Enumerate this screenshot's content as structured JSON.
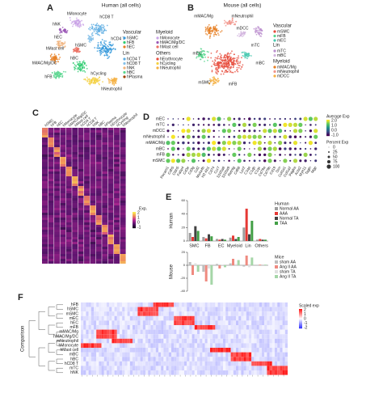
{
  "panels": {
    "A": {
      "letter": "A",
      "title": "Human (all cells)",
      "cluster_labels": [
        "hMonocyte",
        "hNK",
        "hCD8 T",
        "hEC",
        "hMast cell",
        "hMAC/Mg/DC",
        "hFB",
        "hBC",
        "hCycling",
        "hNeutrophil",
        "hSMC",
        "hCD4 T"
      ],
      "legend": [
        {
          "name": "Vascular",
          "items": [
            "hSMC",
            "hFB",
            "hEC"
          ]
        },
        {
          "name": "Myeloid",
          "items": [
            "hMonocyte",
            "hMAC/Mg/DC",
            "hMast cell"
          ]
        },
        {
          "name": "Lin",
          "items": [
            "hCD4 T",
            "hCD8 T",
            "hNK",
            "hBC",
            "hPlasma"
          ]
        },
        {
          "name": "Others",
          "items": [
            "hErythrocyte",
            "hCycling",
            "hNeutrophil"
          ]
        }
      ]
    },
    "B": {
      "letter": "B",
      "title": "Mouse (all cells)",
      "cluster_labels": [
        "mMAC/Mg",
        "mNeutrophil",
        "mTC",
        "mBC",
        "mDCC",
        "mEC",
        "mSMC",
        "mFB"
      ],
      "legend": [
        {
          "name": "Vascular",
          "items": [
            "mSMC",
            "mFB",
            "mEC"
          ]
        },
        {
          "name": "Lin",
          "items": [
            "mTC",
            "mBC"
          ]
        },
        {
          "name": "Myeloid",
          "items": [
            "mMAC/Mg",
            "mNeutrophil",
            "mDCC"
          ]
        }
      ]
    },
    "C": {
      "letter": "C",
      "column_labels": [
        "hSMC",
        "hFB",
        "hEC",
        "hMonocyte",
        "hMAC/Mg/DC",
        "hMast cell",
        "hCD4 T",
        "hCD8 T",
        "hNK",
        "hBC",
        "hPlasma",
        "hErythrocyte",
        "hCycling",
        "hNeutrophil"
      ],
      "legend_title": "Exp.",
      "legend_ticks": [
        "2",
        "1",
        "0",
        "-1"
      ]
    },
    "D": {
      "letter": "D",
      "rows": [
        "mEC",
        "mTC",
        "mDCC",
        "mNeutrophil",
        "mMAC/Mg",
        "mBC",
        "mFB",
        "mSMC"
      ],
      "genes": [
        "Pecam1",
        "Cdh5",
        "Cldn5",
        "Fabp4",
        "Cd3e",
        "Cd3g",
        "Cd2",
        "Ms4a4b",
        "H2-Ab1",
        "Cd74",
        "Ccr7",
        "S100a8",
        "S100a9",
        "Retnlg",
        "Cd68",
        "Lyz2",
        "C1qa",
        "C1qb",
        "C1qc",
        "Cd79a",
        "Cd79b",
        "Cd19",
        "Dcn",
        "Col1a1",
        "Col1a2",
        "Pdgfra",
        "Acta2",
        "Myh11",
        "Tagln",
        "Mgp"
      ],
      "avg_title": "Average Exp",
      "avg_ticks": [
        "2.0",
        "1.0",
        "0.0",
        "-1.0"
      ],
      "pct_title": "Percent Exp",
      "pct_ticks": [
        "0",
        "25",
        "50",
        "75",
        "100"
      ]
    },
    "E": {
      "letter": "E",
      "categories": [
        "SMC",
        "FB",
        "EC",
        "Myeloid",
        "Lin",
        "Others"
      ],
      "human": {
        "label": "Human",
        "legend_title": "Human",
        "ylim": [
          0,
          60
        ],
        "yticks": [
          0,
          20,
          40,
          60
        ],
        "series": [
          {
            "name": "Normal AA",
            "color": "#9e9e9e",
            "values": [
              12,
              6,
              3,
              5,
              20,
              2
            ]
          },
          {
            "name": "AAA",
            "color": "#e53935",
            "values": [
              6,
              4,
              2,
              8,
              48,
              3
            ]
          },
          {
            "name": "Normal TA",
            "color": "#424242",
            "values": [
              22,
              10,
              3,
              3,
              10,
              2
            ]
          },
          {
            "name": "TAA",
            "color": "#43a047",
            "values": [
              15,
              7,
              2,
              6,
              30,
              2
            ]
          }
        ]
      },
      "mouse": {
        "label": "Mouse",
        "legend_title": "Mice",
        "ylim": [
          -40,
          20
        ],
        "yticks": [
          -40,
          -20,
          0,
          20
        ],
        "series": [
          {
            "name": "sham AA",
            "color": "#bdbdbd",
            "values": [
              5,
              -10,
              2,
              3,
              -2,
              0
            ]
          },
          {
            "name": "Ang II AA",
            "color": "#ef8a80",
            "values": [
              -15,
              -25,
              -5,
              10,
              15,
              1
            ]
          },
          {
            "name": "sham TA",
            "color": "#e0e0e0",
            "values": [
              3,
              -5,
              1,
              2,
              -3,
              0
            ]
          },
          {
            "name": "Ang II TA",
            "color": "#a5d6a7",
            "values": [
              -10,
              -30,
              -3,
              8,
              12,
              1
            ]
          }
        ]
      }
    },
    "F": {
      "letter": "F",
      "axis_label": "Comparison",
      "rows": [
        "hFB",
        "hSMC",
        "mSMC",
        "mEC",
        "hEC",
        "mFB",
        "mMAC/Mg",
        "hMAC/Mg/DC",
        "mNeutrophil",
        "hMonocyte",
        "hMast cell",
        "mBC",
        "hBC",
        "hCD8 T",
        "mTC",
        "hNK"
      ],
      "legend_title": "Scaled exp",
      "legend_ticks": [
        "2",
        "1",
        "0",
        "-1",
        "-2"
      ]
    }
  }
}
